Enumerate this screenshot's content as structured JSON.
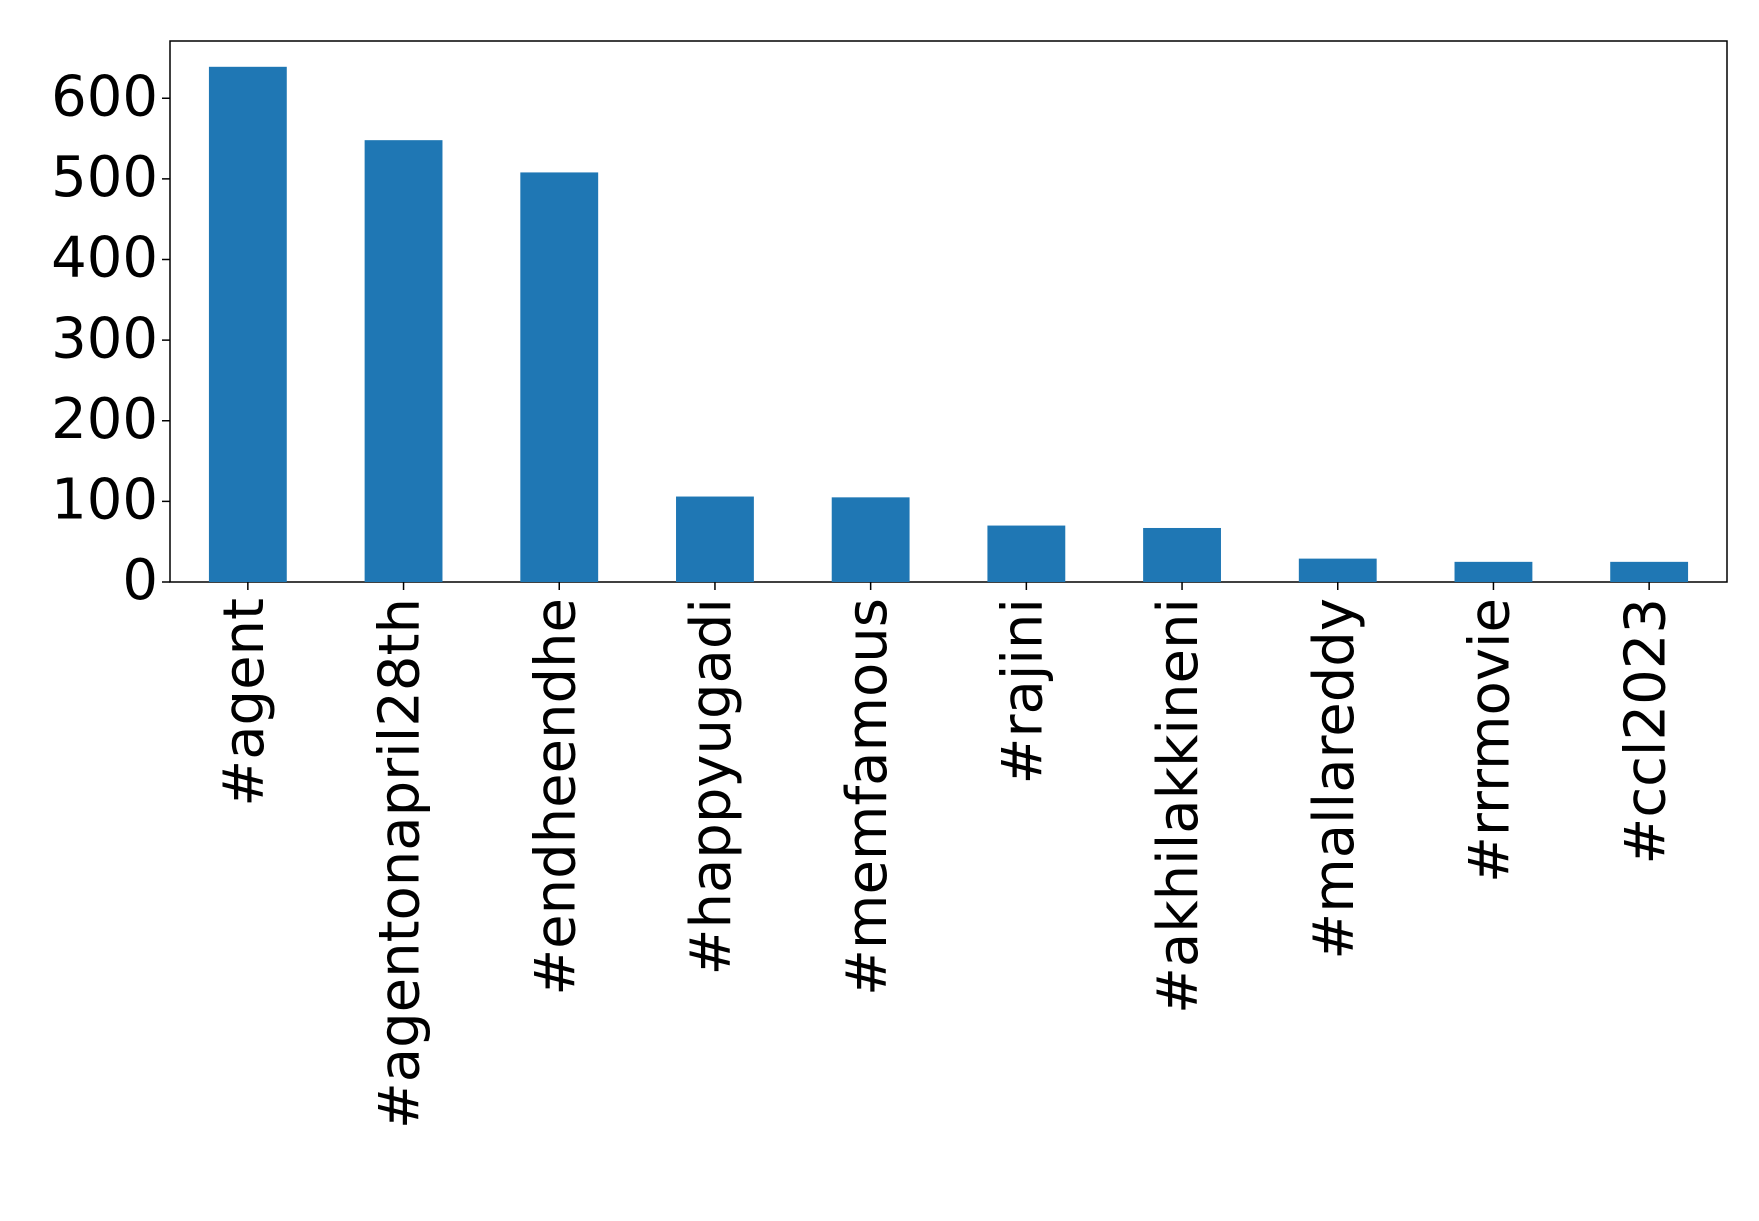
{
  "chart_data": {
    "type": "bar",
    "categories": [
      "#agent",
      "#agentonapril28th",
      "#endheendhe",
      "#happyugadi",
      "#memfamous",
      "#rajini",
      "#akhilakkineni",
      "#mallareddy",
      "#rrrmovie",
      "#ccl2023"
    ],
    "values": [
      639,
      548,
      508,
      106,
      105,
      70,
      67,
      29,
      25,
      25
    ],
    "color": "#1f77b4",
    "ylim": [
      0,
      671
    ],
    "yticks": [
      0,
      100,
      200,
      300,
      400,
      500,
      600
    ],
    "grid": false
  }
}
